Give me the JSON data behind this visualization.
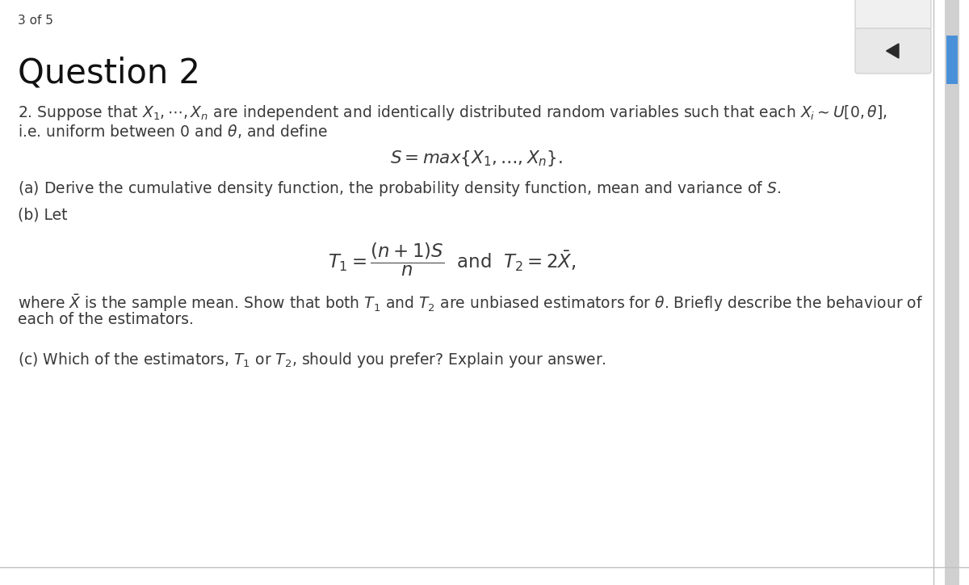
{
  "background_color": "#ffffff",
  "page_indicator": "3 of 5",
  "heading": "Question 2",
  "text_color": "#3a3a3a",
  "heading_fontsize": 30,
  "body_fontsize": 13.5,
  "indicator_fontsize": 11,
  "nav_button_color": "#e8e8e8",
  "nav_button_edge_color": "#cccccc",
  "nav_arrow_color": "#2a2a2a",
  "border_color": "#c0c0c0",
  "scrollbar_color": "#4a90d9",
  "scrollbar_bg": "#d0d0d0"
}
